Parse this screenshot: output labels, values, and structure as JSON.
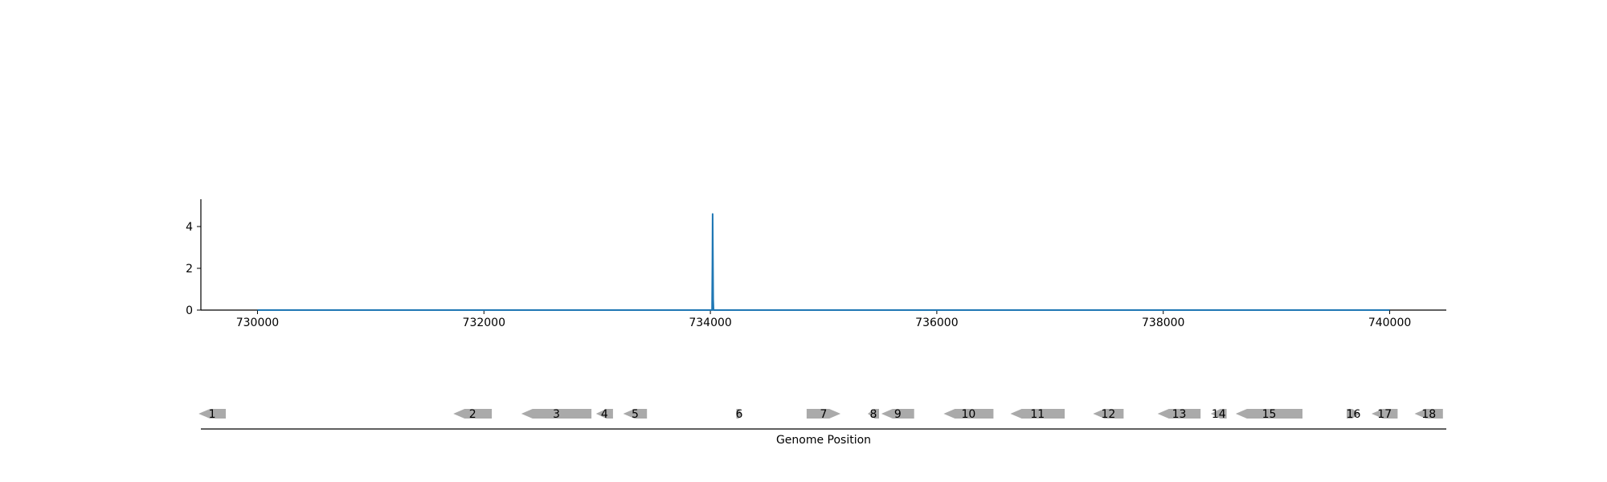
{
  "chart_data": [
    {
      "type": "line",
      "xlim": [
        729500,
        740500
      ],
      "ylim": [
        0,
        5
      ],
      "x_ticks": [
        "730000",
        "732000",
        "734000",
        "736000",
        "738000",
        "740000"
      ],
      "y_ticks": [
        "0",
        "2",
        "4"
      ],
      "grid": false,
      "series": [
        {
          "color": "#1f77b4",
          "x": [
            730000,
            734015,
            734018,
            734020,
            734022,
            734025,
            734028,
            740000
          ],
          "y": [
            0,
            0,
            2.2,
            4.6,
            3.0,
            0.5,
            0,
            0
          ]
        }
      ]
    },
    {
      "type": "gene-track",
      "xlabel": "Genome Position",
      "feature_color": "#aaaaaa",
      "features": [
        {
          "label": "1",
          "start": 729480,
          "end": 729720,
          "strand": "-"
        },
        {
          "label": "2",
          "start": 731730,
          "end": 732070,
          "strand": "-"
        },
        {
          "label": "3",
          "start": 732330,
          "end": 732950,
          "strand": "-"
        },
        {
          "label": "4",
          "start": 732990,
          "end": 733140,
          "strand": "-"
        },
        {
          "label": "5",
          "start": 733230,
          "end": 733440,
          "strand": "-"
        },
        {
          "label": "6",
          "start": 734230,
          "end": 734280,
          "strand": "+"
        },
        {
          "label": "7",
          "start": 734850,
          "end": 735150,
          "strand": "+"
        },
        {
          "label": "8",
          "start": 735390,
          "end": 735490,
          "strand": "-"
        },
        {
          "label": "9",
          "start": 735510,
          "end": 735800,
          "strand": "-"
        },
        {
          "label": "10",
          "start": 736060,
          "end": 736500,
          "strand": "-"
        },
        {
          "label": "11",
          "start": 736650,
          "end": 737130,
          "strand": "-"
        },
        {
          "label": "12",
          "start": 737380,
          "end": 737650,
          "strand": "-"
        },
        {
          "label": "13",
          "start": 737950,
          "end": 738330,
          "strand": "-"
        },
        {
          "label": "14",
          "start": 738420,
          "end": 738560,
          "strand": "-"
        },
        {
          "label": "15",
          "start": 738640,
          "end": 739230,
          "strand": "-"
        },
        {
          "label": "16",
          "start": 739620,
          "end": 739740,
          "strand": "+"
        },
        {
          "label": "17",
          "start": 739840,
          "end": 740070,
          "strand": "-"
        },
        {
          "label": "18",
          "start": 740220,
          "end": 740470,
          "strand": "-"
        }
      ]
    }
  ]
}
